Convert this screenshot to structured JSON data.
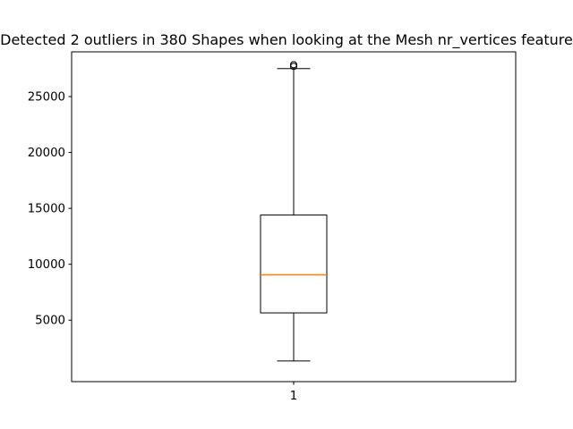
{
  "chart_data": {
    "type": "box",
    "title": "Detected 2 outliers in 380 Shapes when looking at the Mesh nr_vertices feature",
    "xlabel": "",
    "ylabel": "",
    "categories": [
      "1"
    ],
    "ylim": [
      -500,
      29000
    ],
    "yticks": [
      5000,
      10000,
      15000,
      20000,
      25000
    ],
    "ytick_labels": [
      "5000",
      "10000",
      "15000",
      "20000",
      "25000"
    ],
    "grid": false,
    "box": {
      "whisker_low": 1350,
      "q1": 5650,
      "median": 9050,
      "q3": 14400,
      "whisker_high": 27500,
      "outliers": [
        27700,
        27850
      ]
    },
    "colors": {
      "median": "#ff7f0e",
      "box": "#000000",
      "axes": "#000000"
    }
  }
}
